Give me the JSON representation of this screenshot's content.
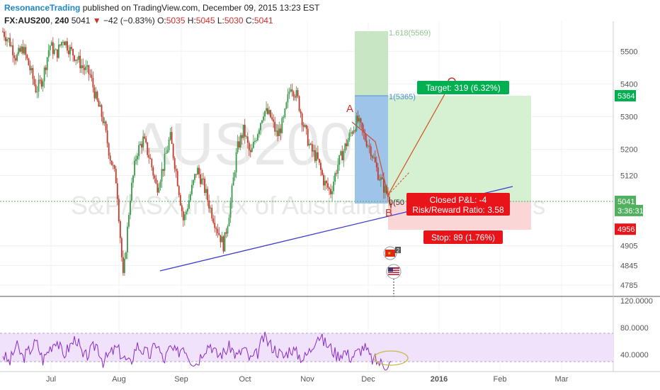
{
  "header": {
    "author": "ResonanceTrading",
    "published_text": "published on TradingView.com, December 09, 2015 13:23 EST",
    "symbol": "FX:AUS200, 240",
    "last": "5041",
    "change": "−42 (−0.83%)",
    "o_label": "O:",
    "o_value": "5035",
    "h_label": "H:",
    "h_value": "5045",
    "l_label": "L:",
    "l_value": "5030",
    "c_label": "C:",
    "c_value": "5041"
  },
  "watermark": {
    "line1": "AUS200, 240",
    "line2": "S&P/ASX index of Australian listed shares"
  },
  "colors": {
    "up": "#3a9a4b",
    "down": "#c0392b",
    "trendline": "#3d3dcc",
    "rsi": "#8a2bc7",
    "rsi_band": "#efe2fa",
    "target": "#00b050",
    "stop": "#e8141a",
    "ellipse": "#c8b84a"
  },
  "chart_data": {
    "type": "candlestick",
    "timeframe": "240",
    "x_ticks": [
      "Jul",
      "Aug",
      "Sep",
      "Oct",
      "Nov",
      "Dec",
      "2016",
      "Feb",
      "Mar"
    ],
    "y_ticks": [
      4785,
      4845,
      4905,
      5120,
      5200,
      5300,
      5400,
      5500
    ],
    "ylim": [
      4760,
      5560
    ],
    "price_series": [
      5560,
      5530,
      5480,
      5510,
      5450,
      5380,
      5420,
      5520,
      5490,
      5540,
      5505,
      5480,
      5450,
      5430,
      5350,
      5290,
      5180,
      5100,
      4800,
      5050,
      5190,
      5230,
      5170,
      5080,
      5150,
      5240,
      5120,
      4980,
      5060,
      5140,
      5090,
      5020,
      4960,
      4905,
      5030,
      5200,
      5260,
      5180,
      5250,
      5320,
      5300,
      5240,
      5290,
      5400,
      5360,
      5270,
      5200,
      5170,
      5100,
      5070,
      5150,
      5200,
      5250,
      5290,
      5240,
      5200,
      5130,
      5080,
      5041
    ],
    "price_labels": [
      {
        "text": "5364",
        "value": 5364,
        "bg": "#00b050"
      },
      {
        "text": "5041",
        "value": 5041,
        "bg": "#50b060"
      },
      {
        "text": "3:36:31",
        "value": 5013,
        "bg": "#50b060"
      },
      {
        "text": "4956",
        "value": 4956,
        "bg": "#e8141a"
      }
    ],
    "annotations": {
      "point_a": "A",
      "point_b": "B",
      "fib_1618": "1.618(5569)",
      "fib_1": "1(5365)",
      "fib_0": "0(50",
      "target": "Target: 319 (6.32%)",
      "closed": "Closed P&L: -4",
      "risk_reward": "Risk/Reward Ratio: 3.58",
      "stop": "Stop: 89 (1.76%)",
      "events": [
        {
          "badge": "2"
        }
      ]
    },
    "rsi": {
      "y_ticks": [
        "120.0000",
        "80.0000",
        "40.0000"
      ],
      "ylim": [
        20,
        120
      ],
      "band": [
        70,
        30
      ],
      "values": [
        50,
        38,
        62,
        45,
        55,
        66,
        42,
        58,
        70,
        48,
        60,
        72,
        44,
        52,
        64,
        40,
        50,
        58,
        46,
        36,
        62,
        54,
        48,
        66,
        40,
        58,
        50,
        62,
        44,
        38,
        56,
        64,
        48,
        52,
        60,
        46,
        58,
        42,
        50,
        72,
        62,
        54,
        46,
        58,
        50,
        44,
        56,
        76,
        66,
        58,
        48,
        54,
        46,
        52,
        60,
        44,
        40,
        36,
        38
      ]
    }
  }
}
